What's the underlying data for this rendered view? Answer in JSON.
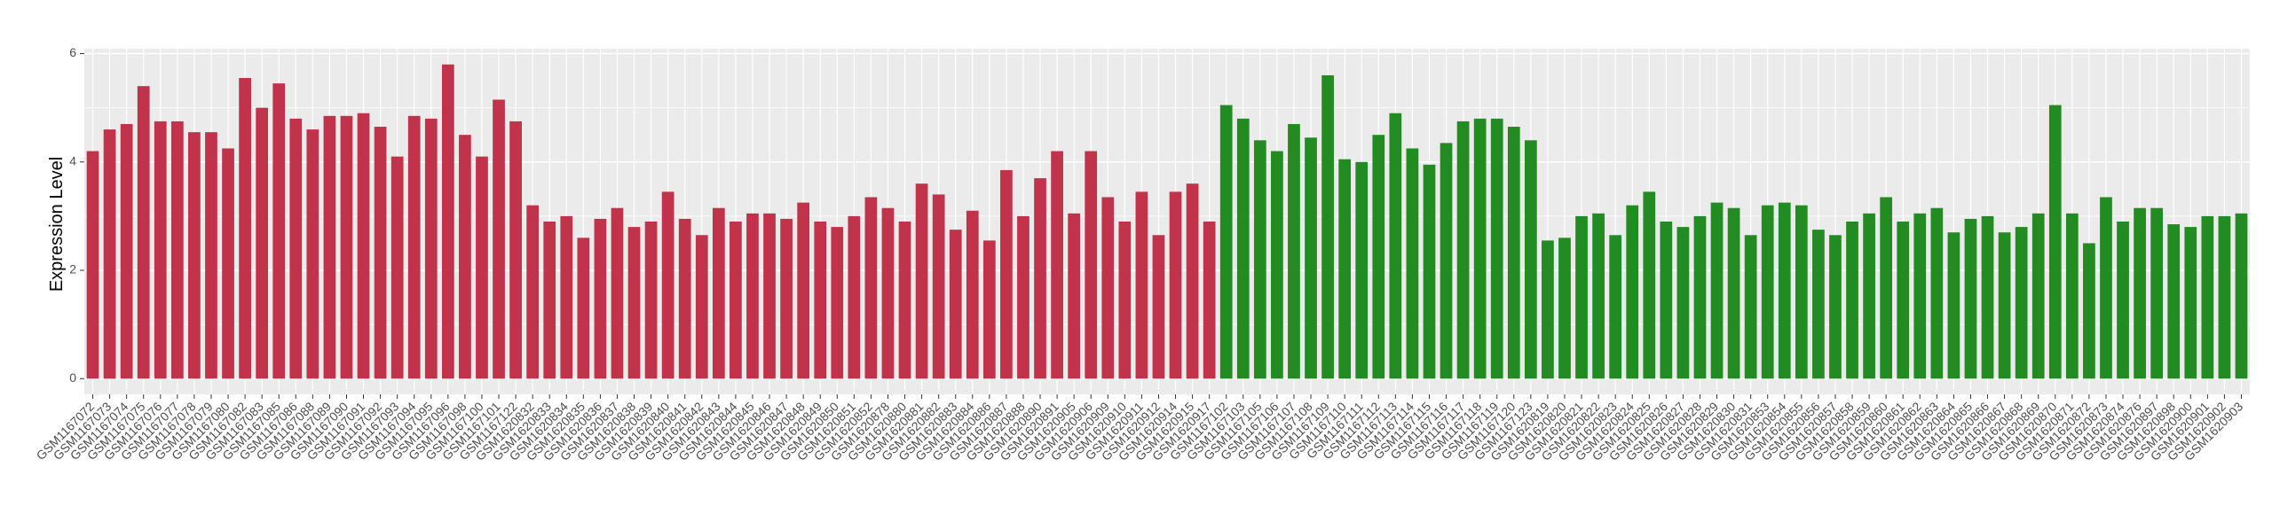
{
  "chart_data": {
    "type": "bar",
    "y_label": "Expression Level",
    "categories": [
      "GSM1167072",
      "GSM1167073",
      "GSM1167074",
      "GSM1167075",
      "GSM1167076",
      "GSM1167077",
      "GSM1167078",
      "GSM1167079",
      "GSM1167080",
      "GSM1167082",
      "GSM1167083",
      "GSM1167085",
      "GSM1167086",
      "GSM1167088",
      "GSM1167089",
      "GSM1167090",
      "GSM1167091",
      "GSM1167092",
      "GSM1167093",
      "GSM1167094",
      "GSM1167095",
      "GSM1167096",
      "GSM1167098",
      "GSM1167100",
      "GSM1167101",
      "GSM1167122",
      "GSM1620832",
      "GSM1620833",
      "GSM1620834",
      "GSM1620835",
      "GSM1620836",
      "GSM1620837",
      "GSM1620838",
      "GSM1620839",
      "GSM1620840",
      "GSM1620841",
      "GSM1620842",
      "GSM1620843",
      "GSM1620844",
      "GSM1620845",
      "GSM1620846",
      "GSM1620847",
      "GSM1620848",
      "GSM1620849",
      "GSM1620850",
      "GSM1620851",
      "GSM1620852",
      "GSM1620878",
      "GSM1620880",
      "GSM1620881",
      "GSM1620882",
      "GSM1620883",
      "GSM1620884",
      "GSM1620886",
      "GSM1620887",
      "GSM1620888",
      "GSM1620890",
      "GSM1620891",
      "GSM1620905",
      "GSM1620906",
      "GSM1620909",
      "GSM1620910",
      "GSM1620911",
      "GSM1620912",
      "GSM1620914",
      "GSM1620915",
      "GSM1620917",
      "GSM1167102",
      "GSM1167103",
      "GSM1167105",
      "GSM1167106",
      "GSM1167107",
      "GSM1167108",
      "GSM1167109",
      "GSM1167110",
      "GSM1167111",
      "GSM1167112",
      "GSM1167113",
      "GSM1167114",
      "GSM1167115",
      "GSM1167116",
      "GSM1167117",
      "GSM1167118",
      "GSM1167119",
      "GSM1167120",
      "GSM1167123",
      "GSM1620819",
      "GSM1620820",
      "GSM1620821",
      "GSM1620822",
      "GSM1620823",
      "GSM1620824",
      "GSM1620825",
      "GSM1620826",
      "GSM1620827",
      "GSM1620828",
      "GSM1620829",
      "GSM1620830",
      "GSM1620831",
      "GSM1620853",
      "GSM1620854",
      "GSM1620855",
      "GSM1620856",
      "GSM1620857",
      "GSM1620858",
      "GSM1620859",
      "GSM1620860",
      "GSM1620861",
      "GSM1620862",
      "GSM1620863",
      "GSM1620864",
      "GSM1620865",
      "GSM1620866",
      "GSM1620867",
      "GSM1620868",
      "GSM1620869",
      "GSM1620870",
      "GSM1620871",
      "GSM1620872",
      "GSM1620873",
      "GSM1620874",
      "GSM1620876",
      "GSM1620897",
      "GSM1620898",
      "GSM1620900",
      "GSM1620901",
      "GSM1620902",
      "GSM1620903"
    ],
    "values": [
      4.2,
      4.6,
      4.7,
      5.4,
      4.75,
      4.75,
      4.55,
      4.55,
      4.25,
      5.55,
      5.0,
      5.45,
      4.8,
      4.6,
      4.85,
      4.85,
      4.9,
      4.65,
      4.1,
      4.85,
      4.8,
      5.8,
      4.5,
      4.1,
      5.15,
      4.75,
      3.2,
      2.9,
      3.0,
      2.6,
      2.95,
      3.15,
      2.8,
      2.9,
      3.45,
      2.95,
      2.65,
      3.15,
      2.9,
      3.05,
      3.05,
      2.95,
      3.25,
      2.9,
      2.8,
      3.0,
      3.35,
      3.15,
      2.9,
      3.6,
      3.4,
      2.75,
      3.1,
      2.55,
      3.85,
      3.0,
      3.7,
      4.2,
      3.05,
      4.2,
      3.35,
      2.9,
      3.45,
      2.65,
      3.45,
      3.6,
      2.9,
      5.05,
      4.8,
      4.4,
      4.2,
      4.7,
      4.45,
      5.6,
      4.05,
      4.0,
      4.5,
      4.9,
      4.25,
      3.95,
      4.35,
      4.75,
      4.8,
      4.8,
      4.65,
      4.4,
      2.55,
      2.6,
      3.0,
      3.05,
      2.65,
      3.2,
      3.45,
      2.9,
      2.8,
      3.0,
      3.25,
      3.15,
      2.65,
      3.2,
      3.25,
      3.2,
      2.75,
      2.65,
      2.9,
      3.05,
      3.35,
      2.9,
      3.05,
      3.15,
      2.7,
      2.95,
      3.0,
      2.7,
      2.8,
      3.05,
      5.05,
      3.05,
      2.5,
      3.35,
      2.9,
      3.15,
      3.15,
      2.85,
      2.8,
      3.0,
      3.0,
      3.05
    ],
    "colors": [
      "#c0334a",
      "#c0334a",
      "#c0334a",
      "#c0334a",
      "#c0334a",
      "#c0334a",
      "#c0334a",
      "#c0334a",
      "#c0334a",
      "#c0334a",
      "#c0334a",
      "#c0334a",
      "#c0334a",
      "#c0334a",
      "#c0334a",
      "#c0334a",
      "#c0334a",
      "#c0334a",
      "#c0334a",
      "#c0334a",
      "#c0334a",
      "#c0334a",
      "#c0334a",
      "#c0334a",
      "#c0334a",
      "#c0334a",
      "#c0334a",
      "#c0334a",
      "#c0334a",
      "#c0334a",
      "#c0334a",
      "#c0334a",
      "#c0334a",
      "#c0334a",
      "#c0334a",
      "#c0334a",
      "#c0334a",
      "#c0334a",
      "#c0334a",
      "#c0334a",
      "#c0334a",
      "#c0334a",
      "#c0334a",
      "#c0334a",
      "#c0334a",
      "#c0334a",
      "#c0334a",
      "#c0334a",
      "#c0334a",
      "#c0334a",
      "#c0334a",
      "#c0334a",
      "#c0334a",
      "#c0334a",
      "#c0334a",
      "#c0334a",
      "#c0334a",
      "#c0334a",
      "#c0334a",
      "#c0334a",
      "#c0334a",
      "#c0334a",
      "#c0334a",
      "#c0334a",
      "#c0334a",
      "#c0334a",
      "#c0334a",
      "#228b22",
      "#228b22",
      "#228b22",
      "#228b22",
      "#228b22",
      "#228b22",
      "#228b22",
      "#228b22",
      "#228b22",
      "#228b22",
      "#228b22",
      "#228b22",
      "#228b22",
      "#228b22",
      "#228b22",
      "#228b22",
      "#228b22",
      "#228b22",
      "#228b22",
      "#228b22",
      "#228b22",
      "#228b22",
      "#228b22",
      "#228b22",
      "#228b22",
      "#228b22",
      "#228b22",
      "#228b22",
      "#228b22",
      "#228b22",
      "#228b22",
      "#228b22",
      "#228b22",
      "#228b22",
      "#228b22",
      "#228b22",
      "#228b22",
      "#228b22",
      "#228b22",
      "#228b22",
      "#228b22",
      "#228b22",
      "#228b22",
      "#228b22",
      "#228b22",
      "#228b22",
      "#228b22",
      "#228b22",
      "#228b22",
      "#228b22",
      "#228b22",
      "#228b22",
      "#228b22",
      "#228b22",
      "#228b22",
      "#228b22",
      "#228b22",
      "#228b22",
      "#228b22",
      "#228b22",
      "#228b22"
    ],
    "ylim": [
      -0.29,
      6.09
    ],
    "yticks": [
      0,
      2,
      4,
      6
    ],
    "grid": true
  }
}
